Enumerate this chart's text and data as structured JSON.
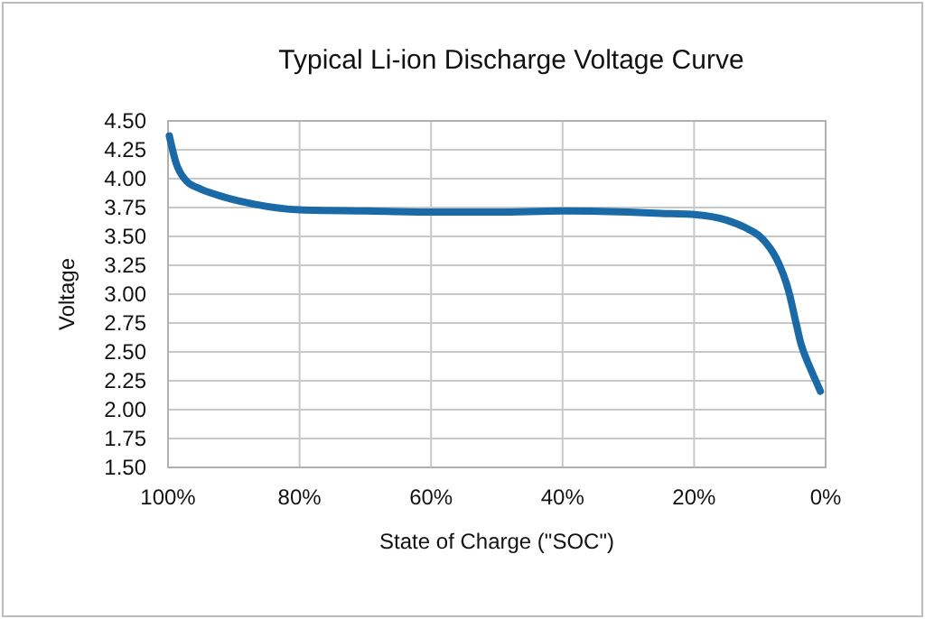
{
  "chart_data": {
    "type": "line",
    "title": "Typical Li-ion Discharge Voltage Curve",
    "xlabel": "State of Charge (\"SOC\")",
    "ylabel": "Voltage",
    "x": [
      99.8,
      98.8,
      97.2,
      95,
      92.6,
      87,
      80,
      70,
      60,
      50,
      40,
      30,
      25,
      20,
      15,
      12,
      10,
      9,
      8,
      7,
      6,
      5.5,
      4.5,
      3.8,
      2.5,
      1.5,
      0.8
    ],
    "series": [
      {
        "color": "#1a6aa8",
        "values": [
          4.37,
          4.14,
          3.98,
          3.91,
          3.86,
          3.78,
          3.73,
          3.72,
          3.71,
          3.71,
          3.72,
          3.71,
          3.7,
          3.69,
          3.64,
          3.57,
          3.5,
          3.44,
          3.36,
          3.25,
          3.1,
          3.0,
          2.75,
          2.58,
          2.38,
          2.25,
          2.16
        ]
      }
    ],
    "xlim": [
      100,
      0
    ],
    "xticks": [
      {
        "value": 100,
        "label": "100%"
      },
      {
        "value": 80,
        "label": "80%"
      },
      {
        "value": 60,
        "label": "60%"
      },
      {
        "value": 40,
        "label": "40%"
      },
      {
        "value": 20,
        "label": "20%"
      },
      {
        "value": 0,
        "label": "0%"
      }
    ],
    "ylim": [
      1.5,
      4.5
    ],
    "yticks": [
      {
        "value": 1.5,
        "label": "1.50"
      },
      {
        "value": 1.75,
        "label": "1.75"
      },
      {
        "value": 2,
        "label": "2.00"
      },
      {
        "value": 2.25,
        "label": "2.25"
      },
      {
        "value": 2.5,
        "label": "2.50"
      },
      {
        "value": 2.75,
        "label": "2.75"
      },
      {
        "value": 3,
        "label": "3.00"
      },
      {
        "value": 3.25,
        "label": "3.25"
      },
      {
        "value": 3.5,
        "label": "3.50"
      },
      {
        "value": 3.75,
        "label": "3.75"
      },
      {
        "value": 4,
        "label": "4.00"
      },
      {
        "value": 4.25,
        "label": "4.25"
      },
      {
        "value": 4.5,
        "label": "4.50"
      }
    ],
    "grid": true,
    "marker": "none",
    "line_style": "solid"
  }
}
